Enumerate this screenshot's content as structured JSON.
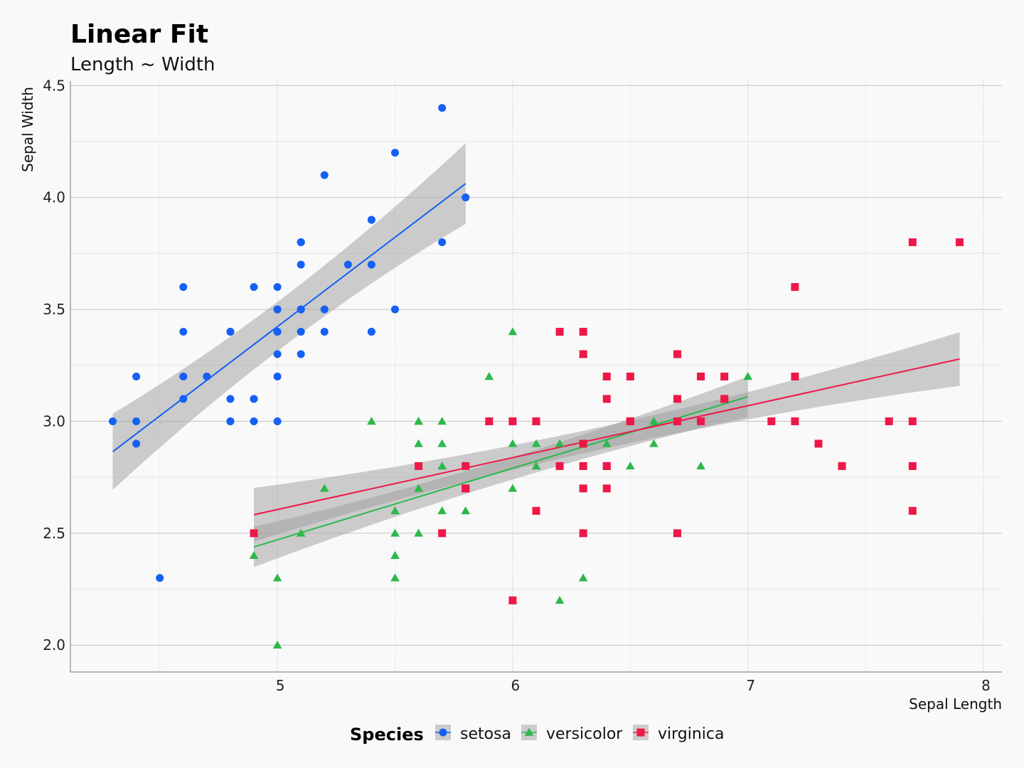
{
  "chart_data": {
    "type": "scatter",
    "title": "Linear Fit",
    "subtitle": "Length ~ Width",
    "xlabel": "Sepal Length",
    "ylabel": "Sepal Width",
    "xlim": [
      4.12,
      8.08
    ],
    "ylim": [
      1.88,
      4.52
    ],
    "xticks": [
      5,
      6,
      7,
      8
    ],
    "xtick_labels": [
      "5",
      "6",
      "7",
      "8"
    ],
    "yticks": [
      2.0,
      2.5,
      3.0,
      3.5,
      4.0,
      4.5
    ],
    "ytick_labels": [
      "2.0",
      "2.5",
      "3.0",
      "3.5",
      "4.0",
      "4.5"
    ],
    "grid": true,
    "legend": {
      "title": "Species",
      "position": "bottom"
    },
    "series": [
      {
        "name": "setosa",
        "marker": "circle",
        "color": "#1560f5",
        "fit": {
          "slope": 0.7985,
          "intercept": -0.5694,
          "x_range": [
            4.3,
            5.8
          ],
          "band": [
            0.17,
            0.11,
            0.18
          ]
        },
        "points": [
          [
            5.1,
            3.5
          ],
          [
            4.9,
            3.0
          ],
          [
            4.7,
            3.2
          ],
          [
            4.6,
            3.1
          ],
          [
            5.0,
            3.6
          ],
          [
            5.4,
            3.9
          ],
          [
            4.6,
            3.4
          ],
          [
            5.0,
            3.4
          ],
          [
            4.4,
            2.9
          ],
          [
            4.9,
            3.1
          ],
          [
            5.4,
            3.7
          ],
          [
            4.8,
            3.4
          ],
          [
            4.8,
            3.0
          ],
          [
            4.3,
            3.0
          ],
          [
            5.8,
            4.0
          ],
          [
            5.7,
            4.4
          ],
          [
            5.4,
            3.9
          ],
          [
            5.1,
            3.5
          ],
          [
            5.7,
            3.8
          ],
          [
            5.1,
            3.8
          ],
          [
            5.4,
            3.4
          ],
          [
            5.1,
            3.7
          ],
          [
            4.6,
            3.6
          ],
          [
            5.1,
            3.3
          ],
          [
            4.8,
            3.4
          ],
          [
            5.0,
            3.0
          ],
          [
            5.0,
            3.4
          ],
          [
            5.2,
            3.5
          ],
          [
            5.2,
            3.4
          ],
          [
            4.7,
            3.2
          ],
          [
            4.8,
            3.1
          ],
          [
            5.4,
            3.4
          ],
          [
            5.2,
            4.1
          ],
          [
            5.5,
            4.2
          ],
          [
            4.9,
            3.1
          ],
          [
            5.0,
            3.2
          ],
          [
            5.5,
            3.5
          ],
          [
            4.9,
            3.6
          ],
          [
            4.4,
            3.0
          ],
          [
            5.1,
            3.4
          ],
          [
            5.0,
            3.5
          ],
          [
            4.5,
            2.3
          ],
          [
            4.4,
            3.2
          ],
          [
            5.0,
            3.5
          ],
          [
            5.1,
            3.8
          ],
          [
            4.8,
            3.0
          ],
          [
            5.1,
            3.8
          ],
          [
            4.6,
            3.2
          ],
          [
            5.3,
            3.7
          ],
          [
            5.0,
            3.3
          ]
        ]
      },
      {
        "name": "versicolor",
        "marker": "triangle",
        "color": "#2db84b",
        "fit": {
          "slope": 0.3197,
          "intercept": 0.8721,
          "x_range": [
            4.9,
            7.0
          ],
          "band": [
            0.09,
            0.05,
            0.09
          ]
        },
        "points": [
          [
            7.0,
            3.2
          ],
          [
            6.4,
            3.2
          ],
          [
            6.9,
            3.1
          ],
          [
            5.5,
            2.3
          ],
          [
            6.5,
            2.8
          ],
          [
            5.7,
            2.8
          ],
          [
            6.3,
            3.3
          ],
          [
            4.9,
            2.4
          ],
          [
            6.6,
            2.9
          ],
          [
            5.2,
            2.7
          ],
          [
            5.0,
            2.0
          ],
          [
            5.9,
            3.0
          ],
          [
            6.0,
            2.2
          ],
          [
            6.1,
            2.9
          ],
          [
            5.6,
            2.9
          ],
          [
            6.7,
            3.1
          ],
          [
            5.6,
            3.0
          ],
          [
            5.8,
            2.7
          ],
          [
            6.2,
            2.2
          ],
          [
            5.6,
            2.5
          ],
          [
            5.9,
            3.2
          ],
          [
            6.1,
            2.8
          ],
          [
            6.3,
            2.5
          ],
          [
            6.1,
            2.8
          ],
          [
            6.4,
            2.9
          ],
          [
            6.6,
            3.0
          ],
          [
            6.8,
            2.8
          ],
          [
            6.7,
            3.0
          ],
          [
            6.0,
            2.9
          ],
          [
            5.7,
            2.6
          ],
          [
            5.5,
            2.4
          ],
          [
            5.5,
            2.4
          ],
          [
            5.8,
            2.7
          ],
          [
            6.0,
            2.7
          ],
          [
            5.4,
            3.0
          ],
          [
            6.0,
            3.4
          ],
          [
            6.7,
            3.1
          ],
          [
            6.3,
            2.3
          ],
          [
            5.6,
            3.0
          ],
          [
            5.5,
            2.5
          ],
          [
            5.5,
            2.6
          ],
          [
            6.1,
            3.0
          ],
          [
            5.8,
            2.6
          ],
          [
            5.0,
            2.3
          ],
          [
            5.6,
            2.7
          ],
          [
            5.7,
            3.0
          ],
          [
            5.7,
            2.9
          ],
          [
            6.2,
            2.9
          ],
          [
            5.1,
            2.5
          ],
          [
            5.7,
            2.8
          ]
        ]
      },
      {
        "name": "virginica",
        "marker": "square",
        "color": "#ee1848",
        "fit": {
          "slope": 0.2319,
          "intercept": 1.4463,
          "x_range": [
            4.9,
            7.9
          ],
          "band": [
            0.12,
            0.05,
            0.12
          ]
        },
        "points": [
          [
            6.3,
            3.3
          ],
          [
            5.8,
            2.7
          ],
          [
            7.1,
            3.0
          ],
          [
            6.3,
            2.9
          ],
          [
            6.5,
            3.0
          ],
          [
            7.6,
            3.0
          ],
          [
            4.9,
            2.5
          ],
          [
            7.3,
            2.9
          ],
          [
            6.7,
            2.5
          ],
          [
            7.2,
            3.6
          ],
          [
            6.5,
            3.2
          ],
          [
            6.4,
            2.7
          ],
          [
            6.8,
            3.0
          ],
          [
            5.7,
            2.5
          ],
          [
            5.8,
            2.8
          ],
          [
            6.4,
            3.2
          ],
          [
            6.5,
            3.0
          ],
          [
            7.7,
            3.8
          ],
          [
            7.7,
            2.6
          ],
          [
            6.0,
            2.2
          ],
          [
            6.9,
            3.2
          ],
          [
            5.6,
            2.8
          ],
          [
            7.7,
            2.8
          ],
          [
            6.3,
            2.7
          ],
          [
            6.7,
            3.3
          ],
          [
            7.2,
            3.2
          ],
          [
            6.2,
            2.8
          ],
          [
            6.1,
            3.0
          ],
          [
            6.4,
            2.8
          ],
          [
            7.2,
            3.0
          ],
          [
            7.4,
            2.8
          ],
          [
            7.9,
            3.8
          ],
          [
            6.4,
            2.8
          ],
          [
            6.3,
            2.8
          ],
          [
            6.1,
            2.6
          ],
          [
            7.7,
            3.0
          ],
          [
            6.3,
            3.4
          ],
          [
            6.4,
            3.1
          ],
          [
            6.0,
            3.0
          ],
          [
            6.9,
            3.1
          ],
          [
            6.7,
            3.1
          ],
          [
            6.9,
            3.1
          ],
          [
            5.8,
            2.7
          ],
          [
            6.8,
            3.2
          ],
          [
            6.7,
            3.3
          ],
          [
            6.7,
            3.0
          ],
          [
            6.3,
            2.5
          ],
          [
            6.5,
            3.0
          ],
          [
            6.2,
            3.4
          ],
          [
            5.9,
            3.0
          ]
        ]
      }
    ]
  }
}
